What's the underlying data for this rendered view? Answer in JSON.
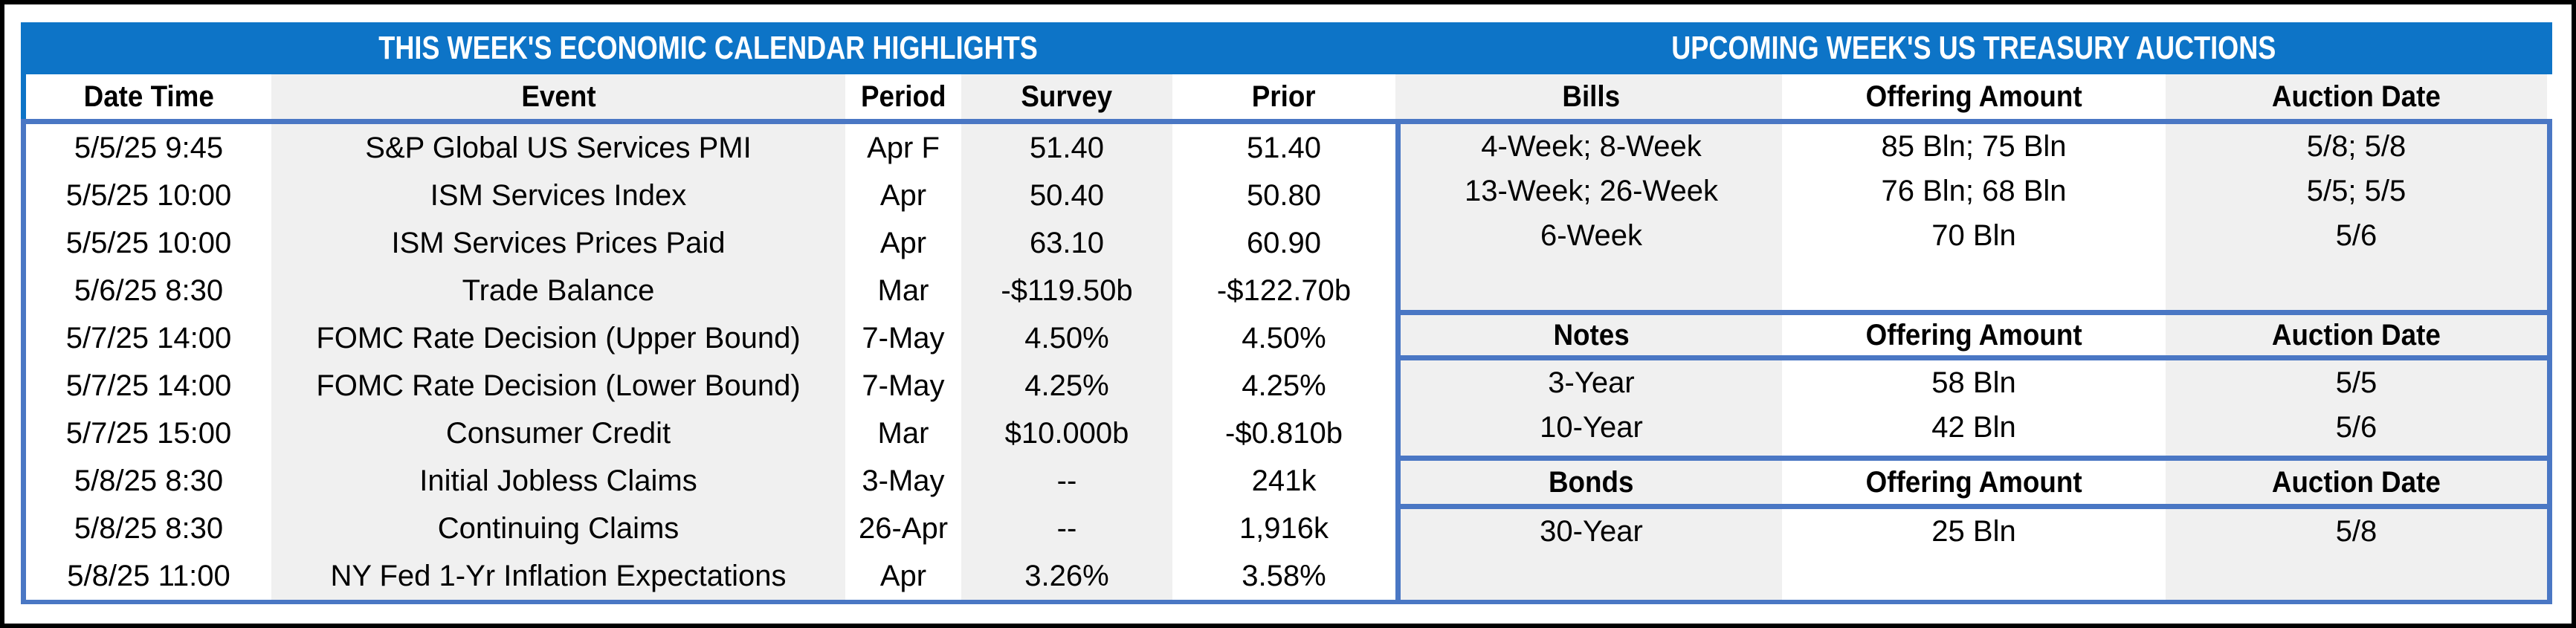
{
  "colors": {
    "title_bar_blue": "#0d74c7",
    "border_blue": "#4a77c4",
    "stripe_gray": "#f0f0f0",
    "frame_black": "#000000"
  },
  "calendar": {
    "title": "THIS WEEK'S ECONOMIC CALENDAR HIGHLIGHTS",
    "columns": {
      "date": "Date Time",
      "event": "Event",
      "period": "Period",
      "survey": "Survey",
      "prior": "Prior"
    },
    "rows": [
      {
        "date": "5/5/25 9:45",
        "event": "S&P Global US Services PMI",
        "period": "Apr F",
        "survey": "51.40",
        "prior": "51.40"
      },
      {
        "date": "5/5/25 10:00",
        "event": "ISM Services Index",
        "period": "Apr",
        "survey": "50.40",
        "prior": "50.80"
      },
      {
        "date": "5/5/25 10:00",
        "event": "ISM Services Prices Paid",
        "period": "Apr",
        "survey": "63.10",
        "prior": "60.90"
      },
      {
        "date": "5/6/25 8:30",
        "event": "Trade Balance",
        "period": "Mar",
        "survey": "-$119.50b",
        "prior": "-$122.70b"
      },
      {
        "date": "5/7/25 14:00",
        "event": "FOMC Rate Decision (Upper Bound)",
        "period": "7-May",
        "survey": "4.50%",
        "prior": "4.50%"
      },
      {
        "date": "5/7/25 14:00",
        "event": "FOMC Rate Decision (Lower Bound)",
        "period": "7-May",
        "survey": "4.25%",
        "prior": "4.25%"
      },
      {
        "date": "5/7/25 15:00",
        "event": "Consumer Credit",
        "period": "Mar",
        "survey": "$10.000b",
        "prior": "-$0.810b"
      },
      {
        "date": "5/8/25 8:30",
        "event": "Initial Jobless Claims",
        "period": "3-May",
        "survey": "--",
        "prior": "241k"
      },
      {
        "date": "5/8/25 8:30",
        "event": "Continuing Claims",
        "period": "26-Apr",
        "survey": "--",
        "prior": "1,916k"
      },
      {
        "date": "5/8/25 11:00",
        "event": "NY Fed 1-Yr Inflation Expectations",
        "period": "Apr",
        "survey": "3.26%",
        "prior": "3.58%"
      }
    ]
  },
  "auctions": {
    "title": "UPCOMING WEEK'S US TREASURY AUCTIONS",
    "bills": {
      "header": {
        "security": "Bills",
        "amount": "Offering Amount",
        "date": "Auction Date"
      },
      "rows": [
        {
          "security": "4-Week; 8-Week",
          "amount": "85 Bln; 75 Bln",
          "date": "5/8; 5/8"
        },
        {
          "security": "13-Week; 26-Week",
          "amount": "76 Bln; 68 Bln",
          "date": "5/5; 5/5"
        },
        {
          "security": "6-Week",
          "amount": "70 Bln",
          "date": "5/6"
        }
      ]
    },
    "notes": {
      "header": {
        "security": "Notes",
        "amount": "Offering Amount",
        "date": "Auction Date"
      },
      "rows": [
        {
          "security": "3-Year",
          "amount": "58 Bln",
          "date": "5/5"
        },
        {
          "security": "10-Year",
          "amount": "42 Bln",
          "date": "5/6"
        }
      ]
    },
    "bonds": {
      "header": {
        "security": "Bonds",
        "amount": "Offering Amount",
        "date": "Auction Date"
      },
      "rows": [
        {
          "security": "30-Year",
          "amount": "25 Bln",
          "date": "5/8"
        }
      ]
    }
  }
}
